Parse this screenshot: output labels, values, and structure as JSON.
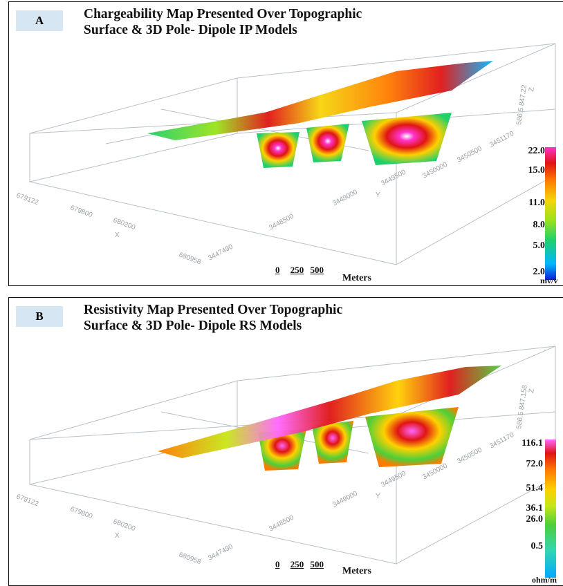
{
  "panel_a": {
    "tag": "A",
    "title_line1": "Chargeability Map Presented Over Topographic",
    "title_line2": "Surface & 3D Pole- Dipole IP Models",
    "z_axis": "586.5  847.22",
    "z_letter": "Z",
    "colorbar_labels": [
      "22.0",
      "15.0",
      "11.0",
      "8.0",
      "5.0",
      "2.0"
    ],
    "unit": "mv/v"
  },
  "panel_b": {
    "tag": "B",
    "title_line1": "Resistivity Map Presented Over Topographic",
    "title_line2": "Surface & 3D Pole- Dipole RS Models",
    "z_axis": "586.5  847.158",
    "z_letter": "Z",
    "colorbar_labels": [
      "116.1",
      "72.0",
      "51.4",
      "36.1",
      "26.0",
      "0.5"
    ],
    "unit": "ohm/m"
  },
  "axes": {
    "x_ticks": [
      "679122",
      "679800",
      "680200",
      "680958"
    ],
    "x_letter": "X",
    "y_ticks": [
      "3447490",
      "3448500",
      "3449000",
      "3449500",
      "3450000",
      "3450500",
      "3451170"
    ],
    "y_letter": "Y"
  },
  "scale": {
    "n0": "0",
    "n1": "250",
    "n2": "500",
    "label": "Meters"
  },
  "colors": {
    "tag_bg": "#d7e6f3",
    "ip_scale": [
      "#0a1fd6",
      "#00b7ff",
      "#1fd06a",
      "#9be21a",
      "#f5d50a",
      "#ff7a00",
      "#e01414",
      "#ff33cc"
    ],
    "rs_scale": [
      "#00aaff",
      "#33d6b0",
      "#4ccf3a",
      "#c7e616",
      "#ffd000",
      "#ff7a00",
      "#e01414",
      "#ff66ff"
    ]
  }
}
